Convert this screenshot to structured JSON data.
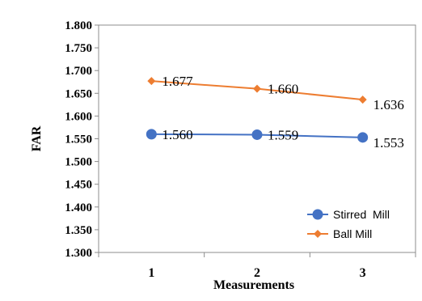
{
  "chart_data": {
    "type": "line",
    "title": "",
    "xlabel": "Measurements",
    "ylabel": "FAR",
    "categories": [
      "1",
      "2",
      "3"
    ],
    "ylim": [
      1.3,
      1.8
    ],
    "yticks": [
      "1.300",
      "1.350",
      "1.400",
      "1.450",
      "1.500",
      "1.550",
      "1.600",
      "1.650",
      "1.700",
      "1.750",
      "1.800"
    ],
    "grid": false,
    "legend_position": "bottom-right",
    "series": [
      {
        "name": "Stirred  Mill",
        "values": [
          1.56,
          1.559,
          1.553
        ],
        "labels": [
          "1.560",
          "1.559",
          "1.553"
        ],
        "color": "#4472C4",
        "marker": "circle"
      },
      {
        "name": "Ball Mill",
        "values": [
          1.677,
          1.66,
          1.636
        ],
        "labels": [
          "1.677",
          "1.660",
          "1.636"
        ],
        "color": "#ED7D31",
        "marker": "diamond"
      }
    ]
  }
}
